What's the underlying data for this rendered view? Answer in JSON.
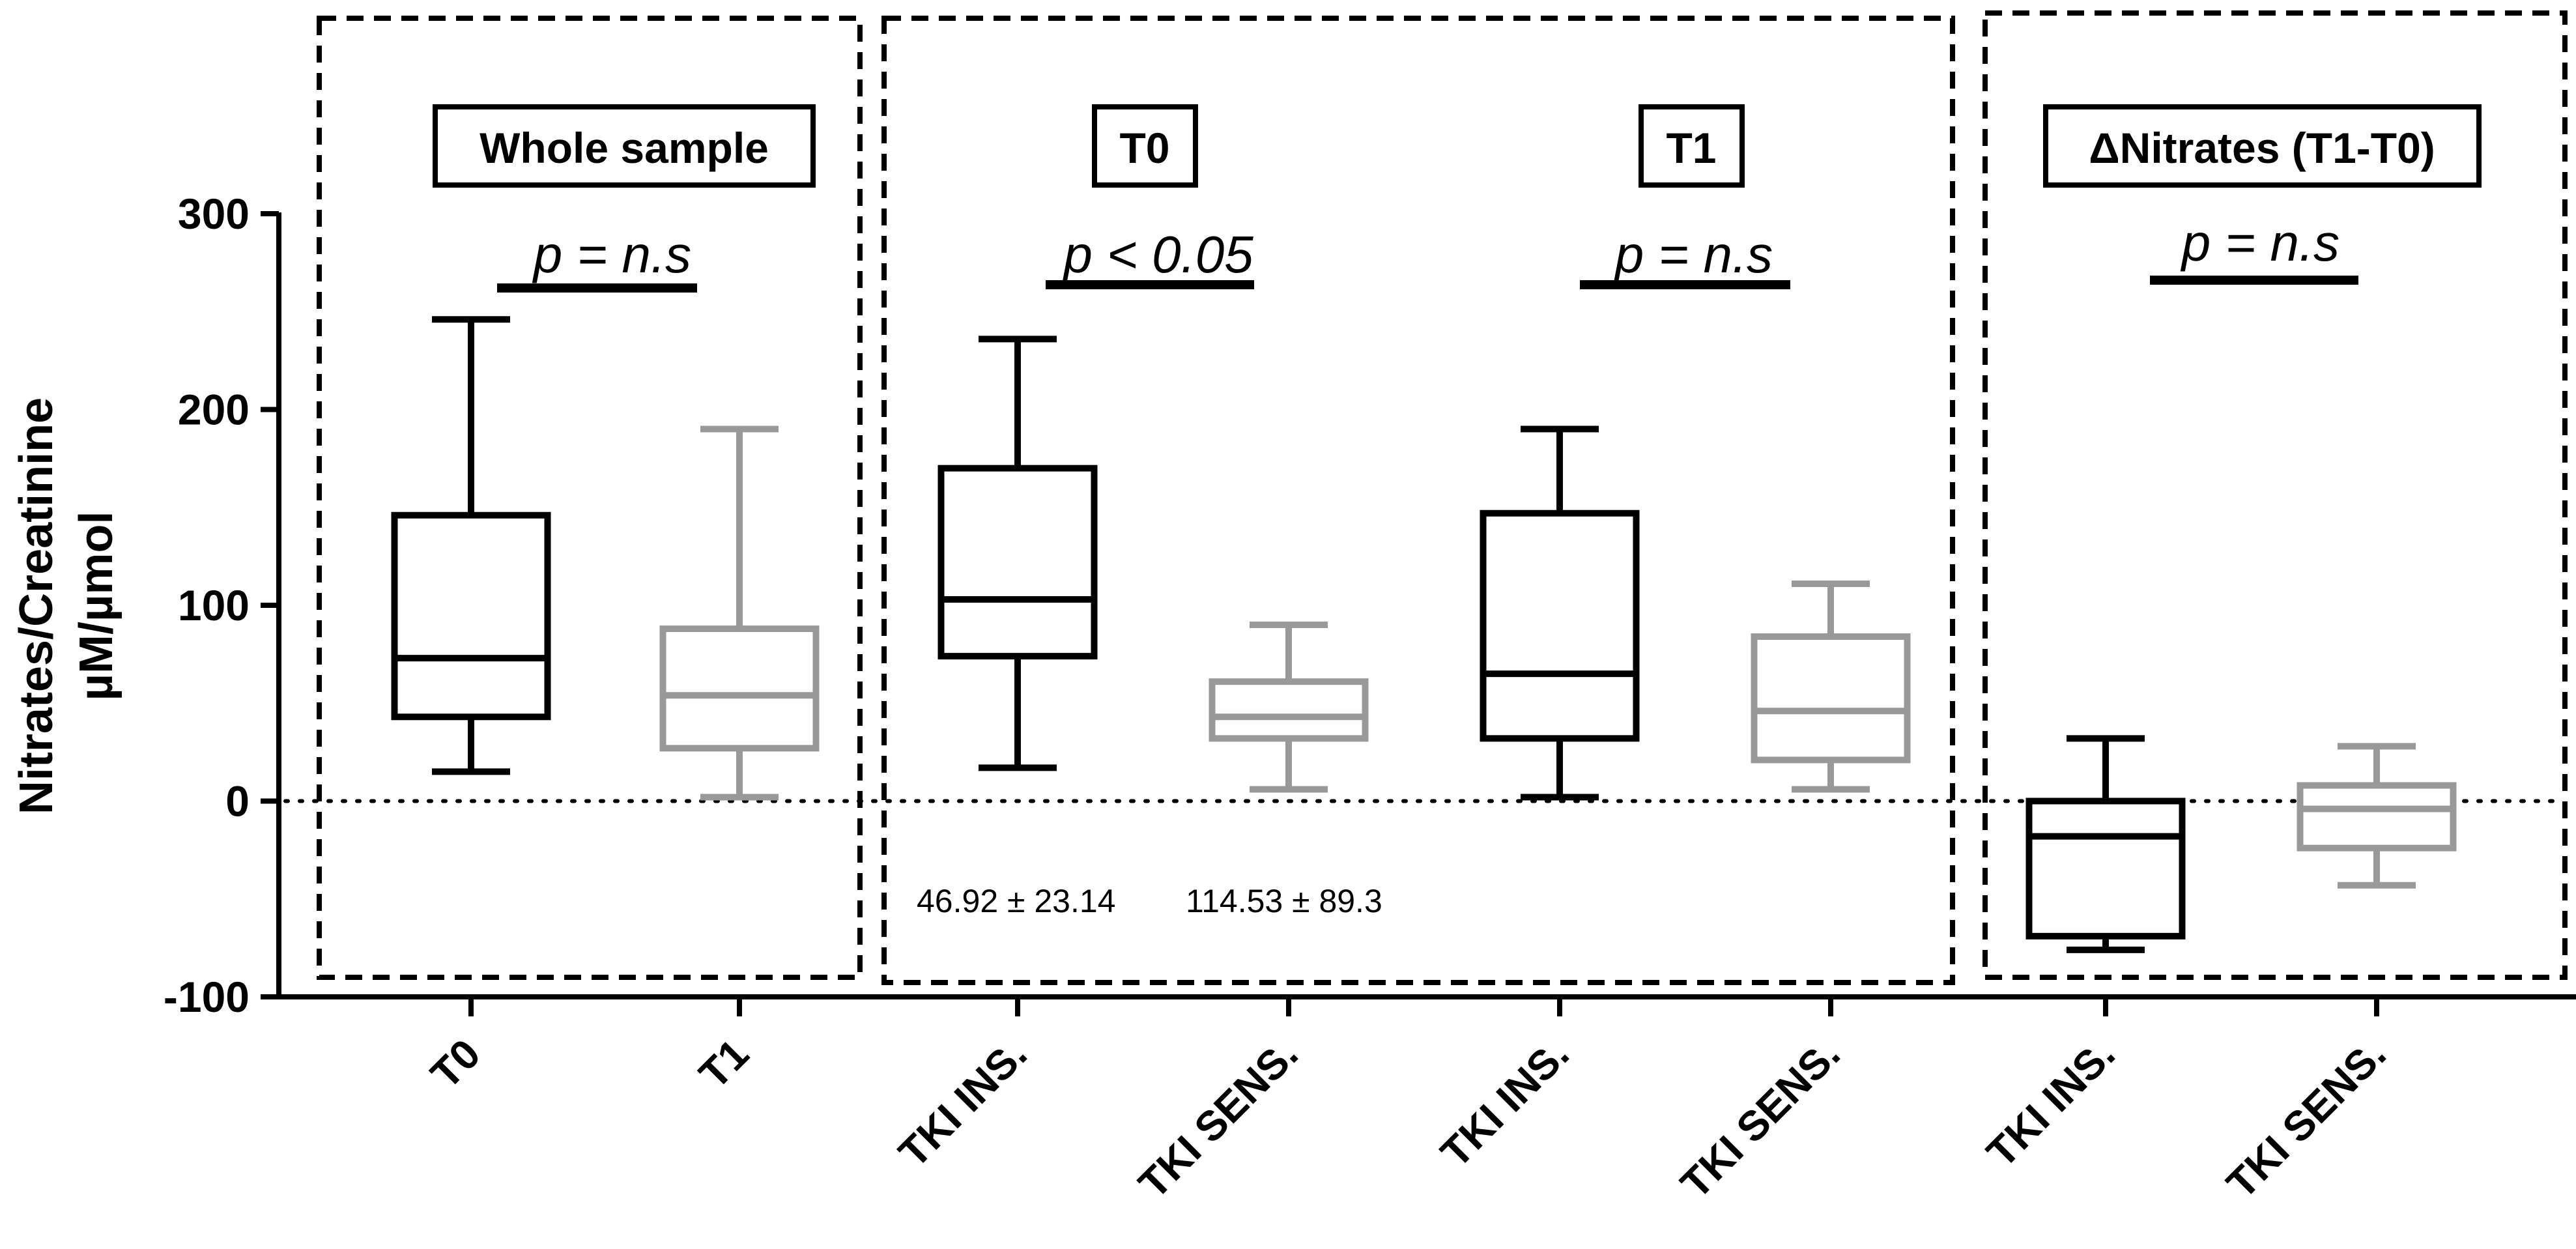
{
  "chart_data": {
    "type": "boxplot",
    "ylabel_line1": "Nitrates/Creatinine",
    "ylabel_line2": "µM/µmol",
    "ylim": [
      -100,
      300
    ],
    "yticks": [
      300,
      200,
      100,
      0,
      -100
    ],
    "reference_line": 0,
    "series": [
      {
        "category": "T0",
        "group": "Whole sample",
        "color": "#000000",
        "min": 15,
        "q1": 43,
        "median": 73,
        "q3": 146,
        "max": 246
      },
      {
        "category": "T1",
        "group": "Whole sample",
        "color": "#999999",
        "min": 2,
        "q1": 27,
        "median": 54,
        "q3": 88,
        "max": 190
      },
      {
        "category": "TKI INS.",
        "group": "T0",
        "color": "#000000",
        "min": 17,
        "q1": 74,
        "median": 103,
        "q3": 170,
        "max": 236
      },
      {
        "category": "TKI SENS.",
        "group": "T0",
        "color": "#999999",
        "min": 6,
        "q1": 32,
        "median": 43,
        "q3": 61,
        "max": 90
      },
      {
        "category": "TKI INS.",
        "group": "T1",
        "color": "#000000",
        "min": 2,
        "q1": 32,
        "median": 65,
        "q3": 147,
        "max": 190
      },
      {
        "category": "TKI SENS.",
        "group": "T1",
        "color": "#999999",
        "min": 6,
        "q1": 21,
        "median": 46,
        "q3": 84,
        "max": 111
      },
      {
        "category": "TKI INS.",
        "group": "ΔNitrates (T1-T0)",
        "color": "#000000",
        "min": -76,
        "q1": -69,
        "median": -18,
        "q3": 0,
        "max": 32
      },
      {
        "category": "TKI SENS.",
        "group": "ΔNitrates (T1-T0)",
        "color": "#999999",
        "min": -43,
        "q1": -24,
        "median": -4,
        "q3": 8,
        "max": 28
      }
    ],
    "panels": [
      {
        "title": "Whole sample",
        "p_values": [
          {
            "text": "p = n.s",
            "between": [
              0,
              1
            ]
          }
        ]
      },
      {
        "title_a": "T0",
        "title_b": "T1",
        "p_values": [
          {
            "text": "p < 0.05",
            "between": [
              2,
              3
            ]
          },
          {
            "text": "p = n.s",
            "between": [
              4,
              5
            ]
          }
        ]
      },
      {
        "title": "ΔNitrates (T1-T0)",
        "p_values": [
          {
            "text": "p = n.s",
            "between": [
              6,
              7
            ]
          }
        ]
      }
    ],
    "annotations": [
      "46.92 ± 23.14",
      "114.53 ± 89.3"
    ]
  }
}
